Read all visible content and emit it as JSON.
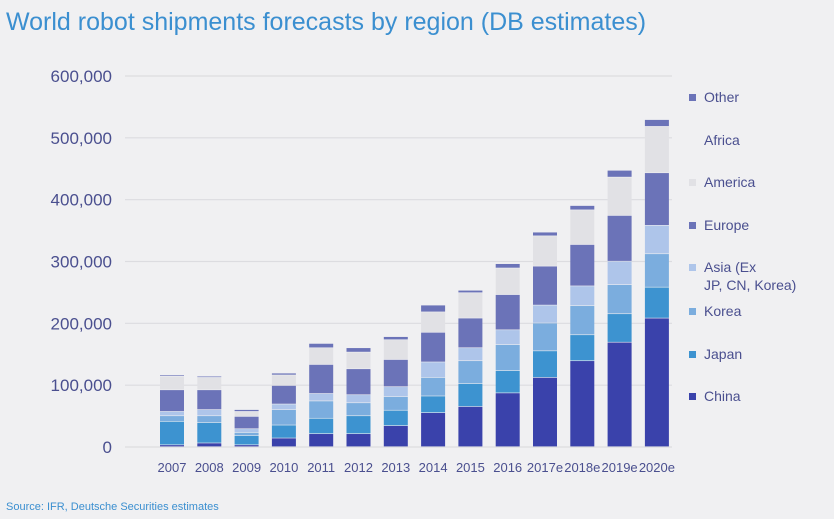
{
  "chart_data": {
    "type": "bar",
    "stacked": true,
    "title": "World robot shipments forecasts by region (DB estimates)",
    "source": "Source: IFR, Deutsche Securities estimates",
    "xlabel": "",
    "ylabel": "",
    "ylim": [
      0,
      600000
    ],
    "yticks": [
      0,
      100000,
      200000,
      300000,
      400000,
      500000,
      600000
    ],
    "ytick_labels": [
      "0",
      "100,000",
      "200,000",
      "300,000",
      "400,000",
      "500,000",
      "600,000"
    ],
    "grid": true,
    "legend_position": "right",
    "categories": [
      "2007",
      "2008",
      "2009",
      "2010",
      "2011",
      "2012",
      "2013",
      "2014",
      "2015",
      "2016",
      "2017e",
      "2018e",
      "2019e",
      "2020e"
    ],
    "series": [
      {
        "name": "China",
        "color": "#3a42ab",
        "values": [
          3000,
          6000,
          3000,
          14000,
          21000,
          21000,
          34000,
          55000,
          65000,
          87000,
          112000,
          139000,
          169000,
          208000
        ]
      },
      {
        "name": "Japan",
        "color": "#3d93d0",
        "values": [
          38000,
          33000,
          15000,
          21000,
          25000,
          29000,
          25000,
          27000,
          37000,
          36000,
          43000,
          42000,
          46000,
          50000
        ]
      },
      {
        "name": "Korea",
        "color": "#7badde",
        "values": [
          9000,
          11000,
          5000,
          25000,
          28000,
          21000,
          22000,
          30000,
          37000,
          42000,
          45000,
          47000,
          47000,
          54000
        ]
      },
      {
        "name": "Asia (Ex JP, CN, Korea)",
        "color": "#aec5ea",
        "values": [
          7000,
          10000,
          6000,
          9000,
          12000,
          13000,
          16000,
          25000,
          21000,
          24000,
          29000,
          32000,
          38000,
          46000
        ]
      },
      {
        "name": "Europe",
        "color": "#6b73b8",
        "values": [
          35000,
          32000,
          20000,
          30000,
          47000,
          42000,
          44000,
          48000,
          48000,
          57000,
          63000,
          67000,
          74000,
          85000
        ]
      },
      {
        "name": "America",
        "color": "#e1e1e5",
        "values": [
          22000,
          20000,
          8000,
          17000,
          27000,
          27000,
          32000,
          33000,
          41000,
          43000,
          49000,
          56000,
          62000,
          75000
        ]
      },
      {
        "name": "Africa",
        "color": "#f3f3f5",
        "values": [
          0,
          0,
          0,
          0,
          0,
          0,
          0,
          0,
          0,
          0,
          0,
          0,
          0,
          0
        ]
      },
      {
        "name": "Other",
        "color": "#6b73b8",
        "values": [
          2000,
          2000,
          3000,
          3000,
          7000,
          7000,
          5000,
          11000,
          4000,
          7000,
          6000,
          7000,
          11000,
          11000
        ]
      }
    ],
    "legend_labels": [
      "Other",
      "Africa",
      "America",
      "Europe",
      "Asia (Ex",
      "JP, CN, Korea)",
      "Korea",
      "Japan",
      "China"
    ]
  }
}
